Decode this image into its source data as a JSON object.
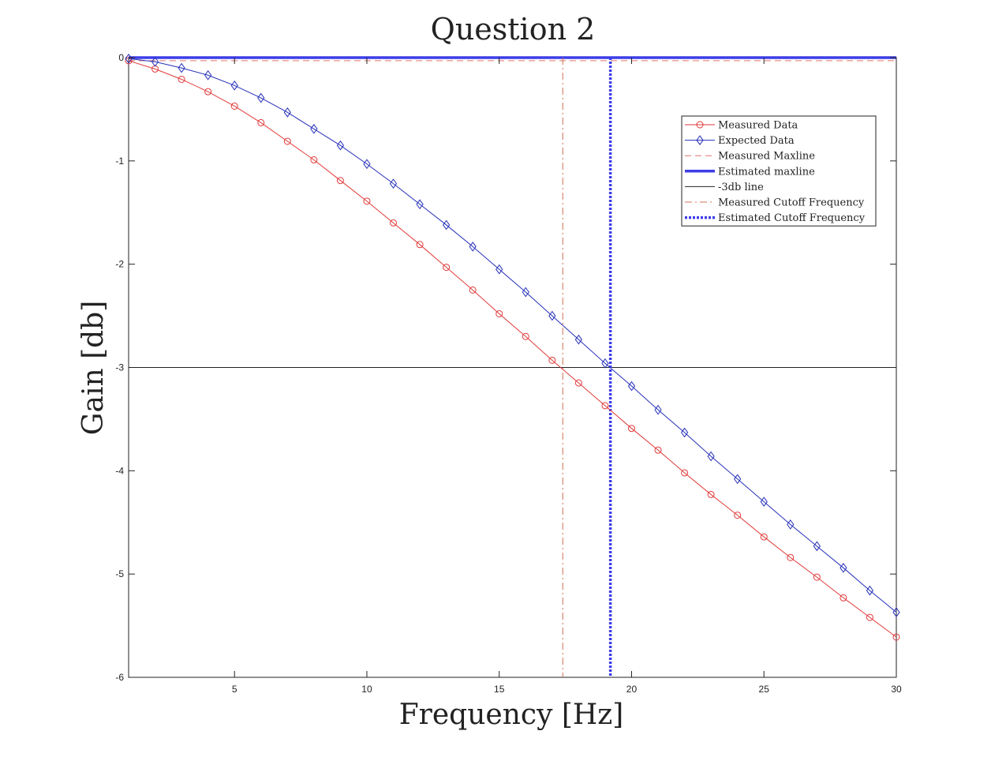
{
  "chart_data": {
    "type": "line",
    "title": "Question 2",
    "xlabel": "Frequency [Hz]",
    "ylabel": "Gain [db]",
    "xlim": [
      1,
      30
    ],
    "ylim": [
      -6,
      0
    ],
    "xticks": [
      5,
      10,
      15,
      20,
      25,
      30
    ],
    "yticks": [
      0,
      -1,
      -2,
      -3,
      -4,
      -5,
      -6
    ],
    "grid": false,
    "legend_position": "top-right",
    "series": [
      {
        "name": "Measured Data",
        "color": "#e03a3a",
        "marker": "circle",
        "x": [
          1,
          2,
          3,
          4,
          5,
          6,
          7,
          8,
          9,
          10,
          11,
          12,
          13,
          14,
          15,
          16,
          17,
          18,
          19,
          20,
          21,
          22,
          23,
          24,
          25,
          26,
          27,
          28,
          29,
          30
        ],
        "y": [
          -0.03,
          -0.11,
          -0.21,
          -0.33,
          -0.47,
          -0.63,
          -0.81,
          -0.99,
          -1.19,
          -1.39,
          -1.6,
          -1.81,
          -2.03,
          -2.25,
          -2.48,
          -2.7,
          -2.93,
          -3.15,
          -3.37,
          -3.59,
          -3.8,
          -4.02,
          -4.23,
          -4.43,
          -4.64,
          -4.84,
          -5.03,
          -5.23,
          -5.42,
          -5.61
        ]
      },
      {
        "name": "Expected Data",
        "color": "#2630b8",
        "marker": "diamond",
        "x": [
          1,
          2,
          3,
          4,
          5,
          6,
          7,
          8,
          9,
          10,
          11,
          12,
          13,
          14,
          15,
          16,
          17,
          18,
          19,
          20,
          21,
          22,
          23,
          24,
          25,
          26,
          27,
          28,
          29,
          30
        ],
        "y": [
          -0.01,
          -0.04,
          -0.1,
          -0.17,
          -0.27,
          -0.39,
          -0.53,
          -0.69,
          -0.85,
          -1.03,
          -1.22,
          -1.42,
          -1.62,
          -1.83,
          -2.05,
          -2.27,
          -2.5,
          -2.73,
          -2.96,
          -3.18,
          -3.41,
          -3.63,
          -3.86,
          -4.08,
          -4.3,
          -4.52,
          -4.73,
          -4.94,
          -5.16,
          -5.37
        ]
      },
      {
        "name": "Measured Maxline",
        "color": "#e07070",
        "style": "dashed",
        "orientation": "horizontal",
        "value": -0.03
      },
      {
        "name": "Estimated maxline",
        "color": "#3d3de8",
        "style": "solid-thick",
        "orientation": "horizontal",
        "value": 0
      },
      {
        "name": "-3db line",
        "color": "#222222",
        "style": "solid-thin",
        "orientation": "horizontal",
        "value": -3
      },
      {
        "name": "Measured Cutoff Frequency",
        "color": "#d07050",
        "style": "dashdot",
        "orientation": "vertical",
        "value": 17.4
      },
      {
        "name": "Estimated Cutoff Frequency",
        "color": "#3d3de8",
        "style": "dotted-thick",
        "orientation": "vertical",
        "value": 19.2
      }
    ]
  }
}
